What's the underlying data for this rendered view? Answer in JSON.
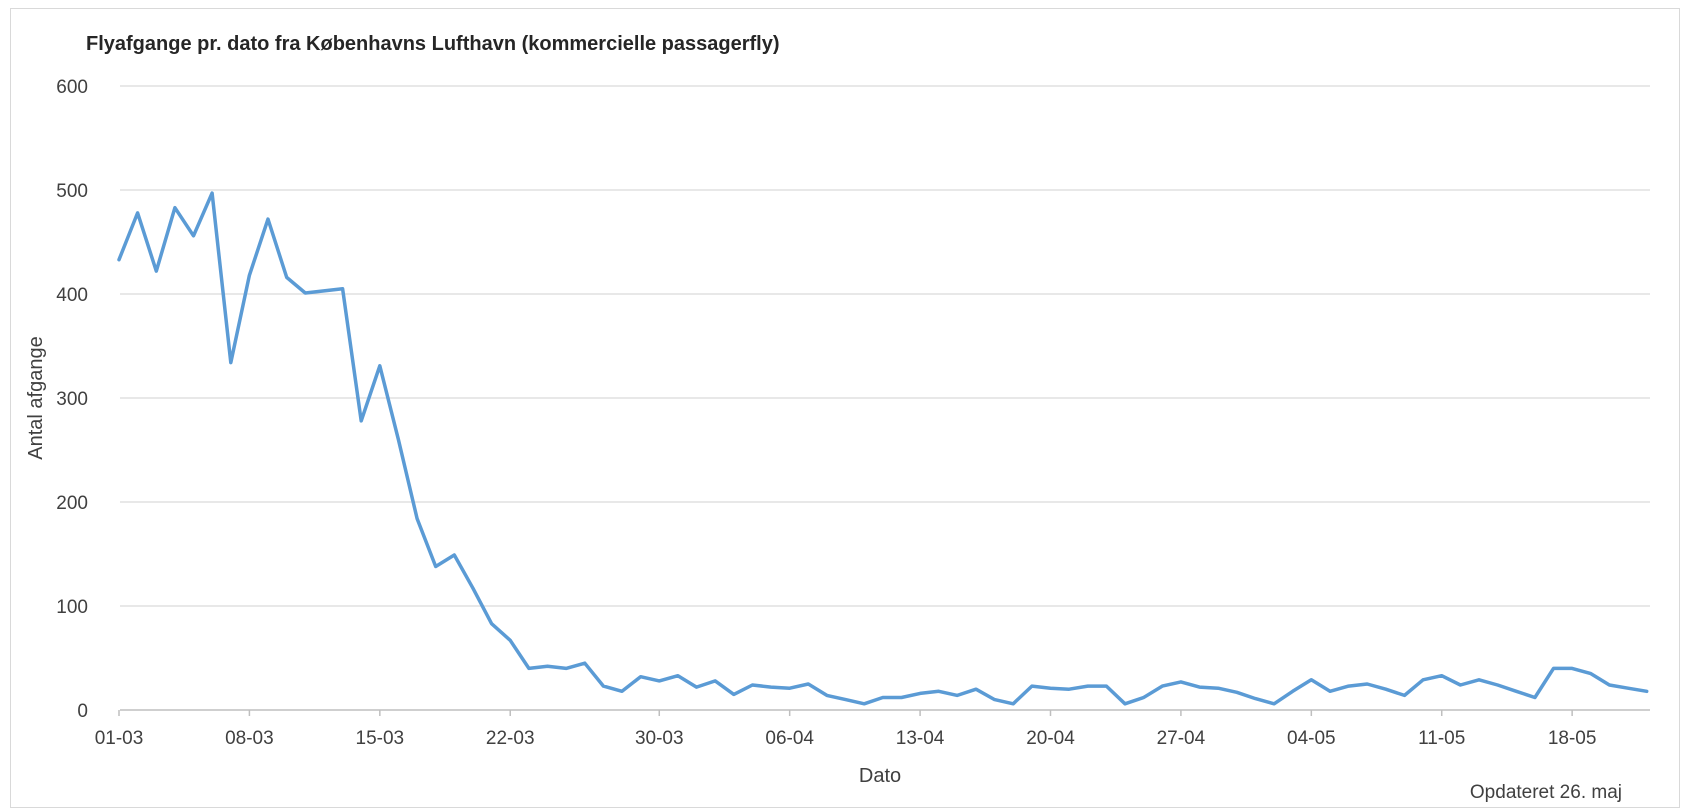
{
  "chart_data": {
    "type": "line",
    "title": "Flyafgange pr. dato fra Københavns Lufthavn (kommercielle passagerfly)",
    "xlabel": "Dato",
    "ylabel": "Antal afgange",
    "note": "Opdateret 26. maj",
    "ylim": [
      0,
      600
    ],
    "yticks": [
      0,
      100,
      200,
      300,
      400,
      500,
      600
    ],
    "xticks": [
      {
        "day": 1,
        "label": "01-03"
      },
      {
        "day": 8,
        "label": "08-03"
      },
      {
        "day": 15,
        "label": "15-03"
      },
      {
        "day": 22,
        "label": "22-03"
      },
      {
        "day": 30,
        "label": "30-03"
      },
      {
        "day": 37,
        "label": "06-04"
      },
      {
        "day": 44,
        "label": "13-04"
      },
      {
        "day": 51,
        "label": "20-04"
      },
      {
        "day": 58,
        "label": "27-04"
      },
      {
        "day": 65,
        "label": "04-05"
      },
      {
        "day": 72,
        "label": "11-05"
      },
      {
        "day": 79,
        "label": "18-05"
      }
    ],
    "grid": true,
    "legend": "none",
    "series": [
      {
        "color": "#5b9bd5",
        "values": [
          433,
          478,
          422,
          483,
          456,
          497,
          334,
          418,
          472,
          416,
          401,
          403,
          405,
          278,
          331,
          260,
          184,
          138,
          149,
          117,
          83,
          67,
          40,
          42,
          40,
          45,
          23,
          18,
          32,
          28,
          33,
          22,
          28,
          15,
          24,
          22,
          21,
          25,
          14,
          10,
          6,
          12,
          12,
          16,
          18,
          14,
          20,
          10,
          6,
          23,
          21,
          20,
          23,
          23,
          6,
          12,
          23,
          27,
          22,
          21,
          17,
          11,
          6,
          18,
          29,
          18,
          23,
          25,
          20,
          14,
          29,
          33,
          24,
          29,
          24,
          18,
          12,
          40,
          40,
          35,
          24,
          21,
          18
        ]
      }
    ]
  }
}
